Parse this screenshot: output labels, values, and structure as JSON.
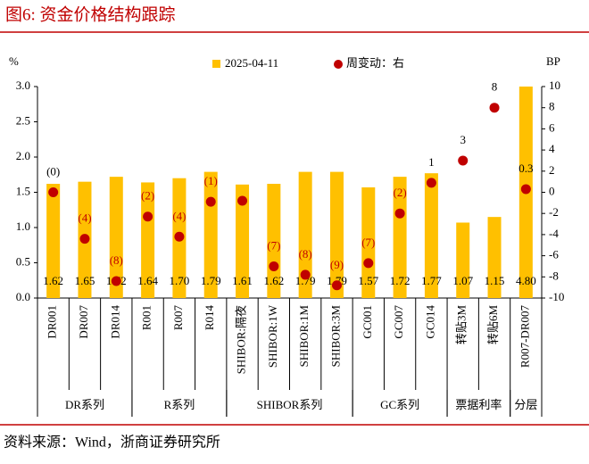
{
  "header": {
    "title": "图6:   资金价格结构跟踪"
  },
  "chart_data": {
    "type": "bar_dot",
    "y_label": "%",
    "y2_label": "BP",
    "categories": [
      "DR001",
      "DR007",
      "DR014",
      "R001",
      "R007",
      "R014",
      "SHIBOR:隔夜",
      "SHIBOR:1W",
      "SHIBOR:1M",
      "SHIBOR:3M",
      "GC001",
      "GC007",
      "GC014",
      "转贴3M",
      "转贴6M",
      "R007-DR007"
    ],
    "groups": [
      {
        "name": "DR系列",
        "size": 3
      },
      {
        "name": "R系列",
        "size": 3
      },
      {
        "name": "SHIBOR系列",
        "size": 4
      },
      {
        "name": "GC系列",
        "size": 3
      },
      {
        "name": "票据利率",
        "size": 2
      },
      {
        "name": "分层",
        "size": 1
      }
    ],
    "series": [
      {
        "name": "2025-04-11",
        "color": "#ffc000",
        "values": [
          1.62,
          1.65,
          1.72,
          1.64,
          1.7,
          1.79,
          1.61,
          1.62,
          1.79,
          1.79,
          1.57,
          1.72,
          1.77,
          1.07,
          1.15,
          4.8
        ],
        "value_labels": [
          "1.62",
          "1.65",
          "1.72",
          "1.64",
          "1.70",
          "1.79",
          "1.61",
          "1.62",
          "1.79",
          "1.79",
          "1.57",
          "1.72",
          "1.77",
          "1.07",
          "1.15",
          "4.80"
        ]
      },
      {
        "name": "周变动：右",
        "color": "#c00000",
        "axis": "y2",
        "values": [
          0,
          -4.4,
          -8.4,
          -2.3,
          -4.2,
          -0.9,
          -0.8,
          -7.0,
          -7.8,
          -8.8,
          -6.7,
          -2.0,
          0.9,
          3,
          8,
          0.3
        ],
        "value_labels": [
          "(0)",
          "(4)",
          "(8)",
          "(2)",
          "(4)",
          "(1)",
          null,
          "(7)",
          "(8)",
          "(9)",
          "(7)",
          "(2)",
          "1",
          "3",
          "8",
          "0.3"
        ]
      }
    ],
    "ylim": [
      0,
      3
    ],
    "yticks": [
      {
        "value": 0,
        "label": "0.0"
      },
      {
        "value": 0.5,
        "label": "0.5"
      },
      {
        "value": 1,
        "label": "1.0"
      },
      {
        "value": 1.5,
        "label": "1.5"
      },
      {
        "value": 2,
        "label": "2.0"
      },
      {
        "value": 2.5,
        "label": "2.5"
      },
      {
        "value": 3,
        "label": "3.0"
      }
    ],
    "y2lim": [
      -10,
      10
    ],
    "y2ticks": [
      -10,
      -8,
      -6,
      -4,
      -2,
      0,
      2,
      4,
      6,
      8,
      10
    ]
  },
  "footer": {
    "source": "资料来源：Wind，浙商证券研究所"
  }
}
